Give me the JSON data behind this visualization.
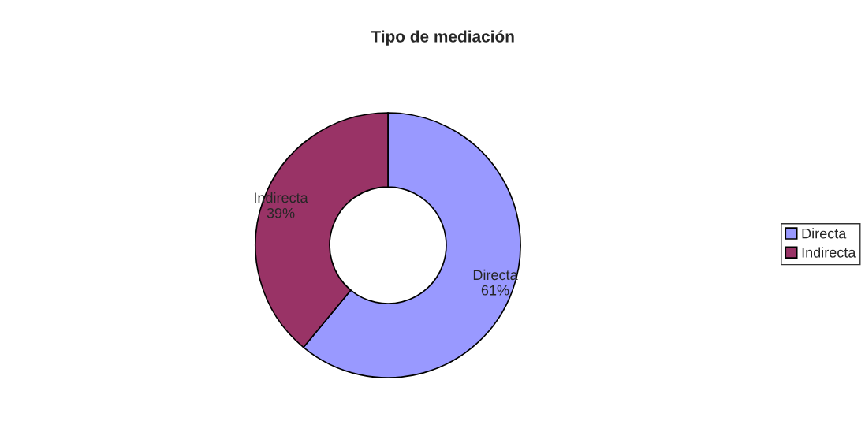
{
  "chart_data": {
    "type": "donut",
    "title": "Tipo de mediación",
    "categories": [
      "Directa",
      "Indirecta"
    ],
    "values": [
      61,
      39
    ],
    "colors": [
      "#9999ff",
      "#993366"
    ],
    "value_labels": [
      "61%",
      "39%"
    ],
    "legend": "right"
  }
}
